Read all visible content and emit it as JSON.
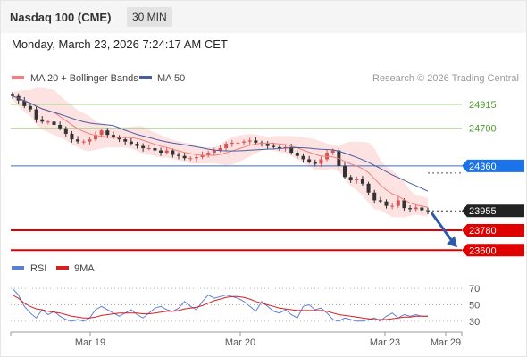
{
  "header": {
    "title": "Nasdaq 100 (CME)",
    "interval": "30 MIN",
    "datetime": "Monday, March 23, 2026 7:24:17 AM CET",
    "copyright": "Research © 2026 Trading Central"
  },
  "legend": {
    "ma20_bb": "MA 20 + Bollinger Bands",
    "ma50": "MA 50",
    "rsi": "RSI",
    "rsi_ma": "9MA"
  },
  "colors": {
    "candle_up": "#d95555",
    "candle_down": "#333333",
    "ma20": "#f08080",
    "bollinger_fill": "#fde2e2",
    "ma50": "#4a5e9e",
    "resistance": "#a8d08d",
    "pivot": "#3b6cc4",
    "support": "#e00000",
    "arrow": "#2e5aa8",
    "rsi": "#5b7fd6",
    "rsi_ma": "#d91e1e"
  },
  "chart_data": [
    {
      "type": "candlestick",
      "title": "Nasdaq 100 (CME)",
      "x_ticks": [
        "Mar 19",
        "Mar 20",
        "Mar 23",
        "Mar 29"
      ],
      "ylim": [
        23530,
        25060
      ],
      "levels": [
        {
          "value": 24915,
          "label": "24915",
          "kind": "resistance"
        },
        {
          "value": 24700,
          "label": "24700",
          "kind": "resistance"
        },
        {
          "value": 24360,
          "label": "24360",
          "kind": "pivot"
        },
        {
          "value": 23780,
          "label": "23780",
          "kind": "support"
        },
        {
          "value": 23600,
          "label": "23600",
          "kind": "support"
        }
      ],
      "last_price": {
        "value": 23955,
        "label": "23955"
      },
      "close_path": [
        24990,
        24950,
        24900,
        24870,
        24780,
        24760,
        24760,
        24730,
        24700,
        24650,
        24600,
        24580,
        24580,
        24600,
        24640,
        24680,
        24640,
        24620,
        24600,
        24580,
        24560,
        24540,
        24520,
        24520,
        24500,
        24480,
        24500,
        24460,
        24450,
        24430,
        24430,
        24440,
        24460,
        24480,
        24500,
        24520,
        24560,
        24570,
        24570,
        24580,
        24590,
        24570,
        24560,
        24540,
        24530,
        24520,
        24530,
        24480,
        24450,
        24420,
        24400,
        24380,
        24420,
        24480,
        24500,
        24360,
        24260,
        24230,
        24240,
        24200,
        24120,
        24050,
        24040,
        24000,
        24000,
        24050,
        23980,
        23970,
        23985,
        23960,
        23955
      ],
      "projection": {
        "from": 23955,
        "to": 23600
      }
    },
    {
      "type": "line",
      "title": "RSI",
      "x_ticks": [
        "Mar 19",
        "Mar 20",
        "Mar 23",
        "Mar 29"
      ],
      "ylim": [
        20,
        80
      ],
      "y_ticks": [
        30,
        50,
        70
      ],
      "series": [
        {
          "name": "RSI",
          "values": [
            70,
            62,
            48,
            40,
            34,
            44,
            38,
            42,
            36,
            32,
            30,
            32,
            30,
            34,
            44,
            48,
            44,
            40,
            36,
            40,
            44,
            38,
            34,
            40,
            46,
            48,
            44,
            42,
            46,
            54,
            48,
            44,
            54,
            62,
            58,
            60,
            62,
            60,
            58,
            54,
            48,
            42,
            54,
            48,
            42,
            40,
            44,
            38,
            34,
            48,
            50,
            44,
            46,
            40,
            32,
            30,
            34,
            32,
            30,
            30,
            32,
            34,
            30,
            36,
            40,
            34,
            38,
            36,
            38,
            36,
            36
          ]
        },
        {
          "name": "9MA",
          "values": [
            62,
            58,
            52,
            48,
            45,
            44,
            42,
            41,
            40,
            38,
            36,
            35,
            34,
            34,
            35,
            37,
            38,
            39,
            40,
            40,
            40,
            40,
            39,
            39,
            40,
            41,
            42,
            42,
            43,
            45,
            46,
            47,
            49,
            52,
            55,
            57,
            59,
            60,
            60,
            59,
            57,
            54,
            52,
            50,
            48,
            46,
            45,
            44,
            43,
            43,
            43,
            43,
            43,
            42,
            40,
            38,
            37,
            36,
            35,
            34,
            33,
            32,
            32,
            32,
            33,
            34,
            35,
            35,
            36,
            36,
            36
          ]
        }
      ]
    }
  ]
}
